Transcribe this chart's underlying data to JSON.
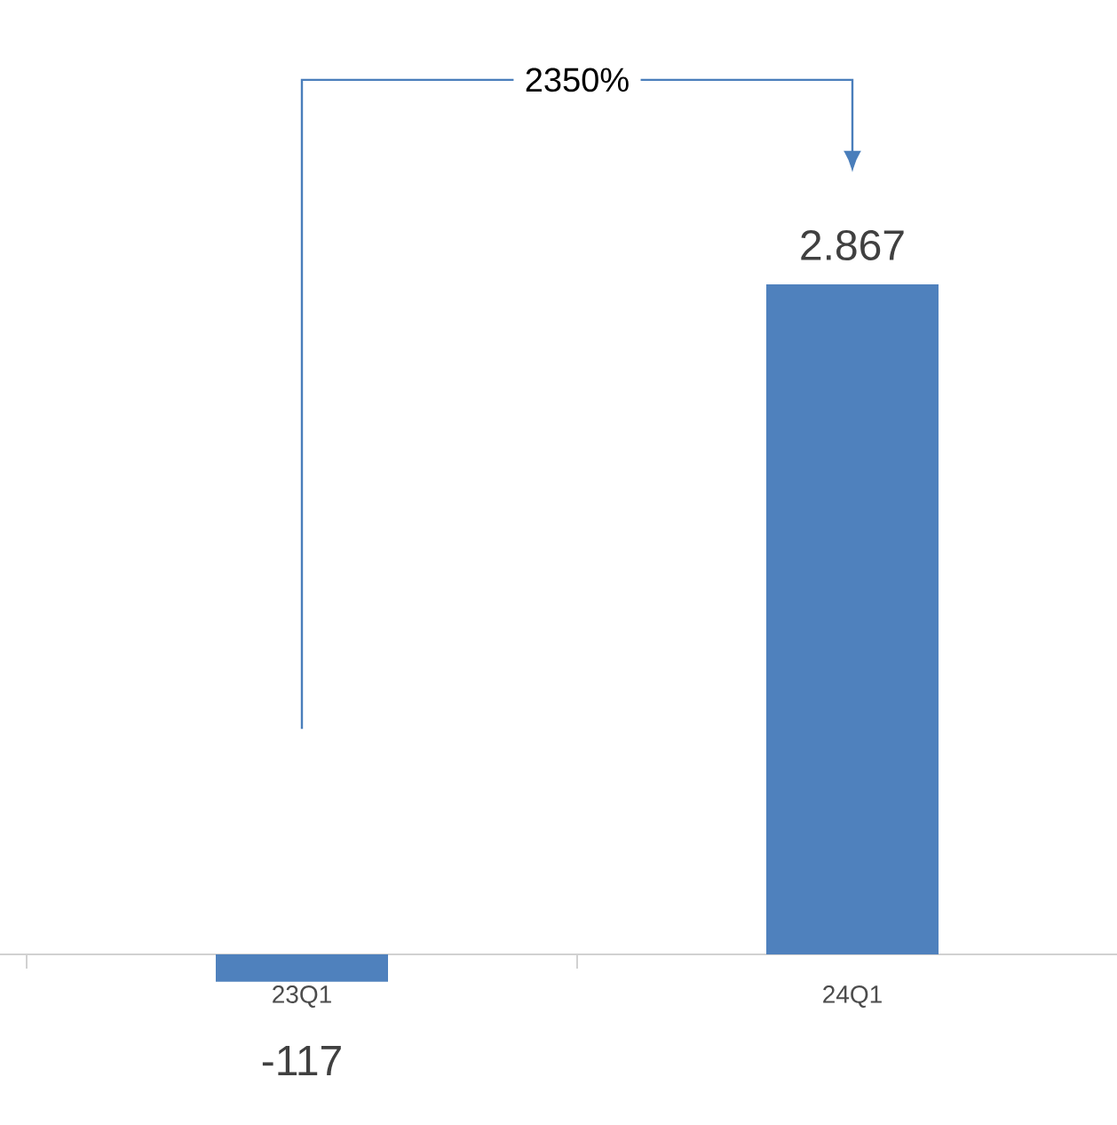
{
  "chart_data": {
    "type": "bar",
    "categories": [
      "23Q1",
      "24Q1"
    ],
    "values": [
      -117,
      2867
    ],
    "color": "#4f81bd",
    "value_labels": [
      "-117",
      "2.867"
    ],
    "annotations": [
      "2350%"
    ]
  }
}
